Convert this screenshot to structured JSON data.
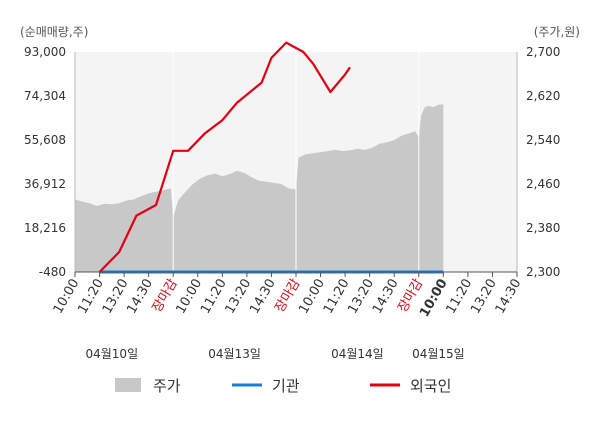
{
  "chart_data": {
    "type": "line",
    "left_axis": {
      "unit_label": "(순매매량,주)",
      "ticks": [
        93000,
        74304,
        55608,
        36912,
        18216,
        -480
      ],
      "range": [
        -480,
        93000
      ]
    },
    "right_axis": {
      "unit_label": "(주가,원)",
      "ticks": [
        2700,
        2620,
        2540,
        2460,
        2380,
        2300
      ],
      "range": [
        2300,
        2700
      ]
    },
    "x_slots": [
      "10:00",
      "11:20",
      "13:20",
      "14:30",
      "장마감",
      "10:00",
      "11:20",
      "13:20",
      "14:30",
      "장마감",
      "10:00",
      "11:20",
      "13:20",
      "14:30",
      "장마감",
      "10:00",
      "11:20",
      "13:20",
      "14:30"
    ],
    "x_slot_highlight": [
      false,
      false,
      false,
      false,
      true,
      false,
      false,
      false,
      false,
      true,
      false,
      false,
      false,
      false,
      true,
      false,
      false,
      false,
      false
    ],
    "x_slot_bold": [
      false,
      false,
      false,
      false,
      false,
      false,
      false,
      false,
      false,
      false,
      false,
      false,
      false,
      false,
      false,
      true,
      false,
      false,
      false
    ],
    "dates": [
      {
        "label": "04월10일",
        "slot": 1.5
      },
      {
        "label": "04월13일",
        "slot": 6.5
      },
      {
        "label": "04월14일",
        "slot": 11.5
      },
      {
        "label": "04월15일",
        "slot": 14.8
      }
    ],
    "series": [
      {
        "name": "주가",
        "kind": "area",
        "color": "#c8c8c8",
        "axis": "right",
        "points": [
          [
            0,
            2432
          ],
          [
            0.3,
            2428
          ],
          [
            0.6,
            2425
          ],
          [
            0.9,
            2420
          ],
          [
            1.2,
            2424
          ],
          [
            1.5,
            2423
          ],
          [
            1.8,
            2425
          ],
          [
            2.1,
            2430
          ],
          [
            2.4,
            2432
          ],
          [
            2.7,
            2438
          ],
          [
            3.0,
            2443
          ],
          [
            3.3,
            2446
          ],
          [
            3.6,
            2449
          ],
          [
            3.9,
            2452
          ],
          [
            4.0,
            2400
          ],
          [
            4.2,
            2430
          ],
          [
            4.5,
            2446
          ],
          [
            4.8,
            2460
          ],
          [
            5.1,
            2470
          ],
          [
            5.4,
            2476
          ],
          [
            5.7,
            2479
          ],
          [
            6.0,
            2474
          ],
          [
            6.3,
            2478
          ],
          [
            6.6,
            2484
          ],
          [
            6.9,
            2480
          ],
          [
            7.2,
            2472
          ],
          [
            7.5,
            2466
          ],
          [
            7.8,
            2464
          ],
          [
            8.1,
            2462
          ],
          [
            8.4,
            2460
          ],
          [
            8.7,
            2452
          ],
          [
            9.0,
            2450
          ],
          [
            9.1,
            2508
          ],
          [
            9.4,
            2514
          ],
          [
            9.7,
            2516
          ],
          [
            10.0,
            2518
          ],
          [
            10.3,
            2520
          ],
          [
            10.6,
            2522
          ],
          [
            10.9,
            2520
          ],
          [
            11.2,
            2521
          ],
          [
            11.5,
            2524
          ],
          [
            11.8,
            2522
          ],
          [
            12.1,
            2526
          ],
          [
            12.4,
            2533
          ],
          [
            12.7,
            2536
          ],
          [
            13.0,
            2540
          ],
          [
            13.3,
            2548
          ],
          [
            13.6,
            2552
          ],
          [
            13.85,
            2556
          ],
          [
            14.0,
            2545
          ],
          [
            14.1,
            2585
          ],
          [
            14.25,
            2600
          ],
          [
            14.4,
            2602
          ],
          [
            14.6,
            2600
          ],
          [
            14.8,
            2604
          ],
          [
            15.0,
            2605
          ]
        ]
      },
      {
        "name": "기관",
        "kind": "line",
        "color": "#1a7fd6",
        "axis": "left",
        "points": [
          [
            1,
            -480
          ],
          [
            15,
            -480
          ]
        ]
      },
      {
        "name": "외국인",
        "kind": "line",
        "color": "#e60012",
        "axis": "left",
        "points": [
          [
            1,
            -480
          ],
          [
            1.8,
            8000
          ],
          [
            2.5,
            23500
          ],
          [
            3.3,
            28000
          ],
          [
            4,
            51000
          ],
          [
            4.6,
            51000
          ],
          [
            5.3,
            58500
          ],
          [
            6,
            64000
          ],
          [
            6.6,
            71500
          ],
          [
            7.6,
            80000
          ],
          [
            8,
            90500
          ],
          [
            8.6,
            97000
          ],
          [
            9.3,
            93000
          ],
          [
            9.7,
            88000
          ],
          [
            10.4,
            76000
          ],
          [
            11.0,
            83500
          ],
          [
            11.2,
            86500
          ]
        ]
      }
    ],
    "legend": {
      "placement": "bottom"
    }
  }
}
